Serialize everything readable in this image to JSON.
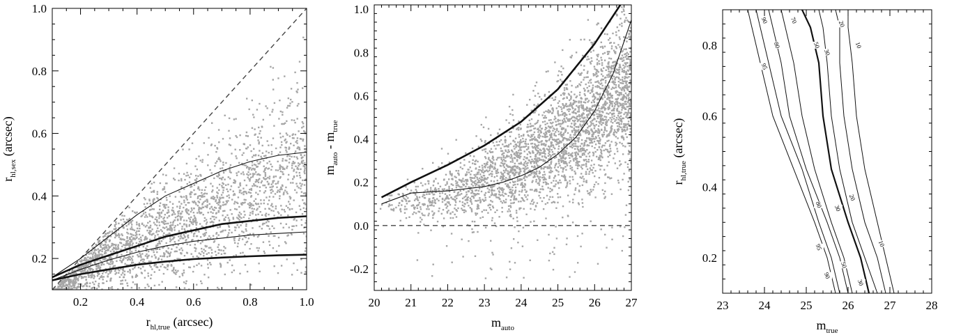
{
  "chart_data": [
    {
      "type": "scatter",
      "title": "",
      "xlabel": {
        "main": "r",
        "sub": "hl,true",
        "suffix": " (arcsec)"
      },
      "ylabel": {
        "main": "r",
        "sub": "hl,sex",
        "suffix": " (arcsec)"
      },
      "xlim": [
        0.1,
        1.0
      ],
      "ylim": [
        0.1,
        1.0
      ],
      "xticks": [
        0.2,
        0.4,
        0.6,
        0.8,
        1.0
      ],
      "xtick_labels": [
        "0.2",
        "0.4",
        "0.6",
        "0.8",
        "1.0"
      ],
      "yticks": [
        0.2,
        0.4,
        0.6,
        0.8,
        1.0
      ],
      "ytick_labels": [
        "0.2",
        "0.4",
        "0.6",
        "0.8",
        "1.0"
      ],
      "scatter_color": "#a6a6a6",
      "scatter_cloud": {
        "n": 2600,
        "x_range": [
          0.1,
          1.0
        ]
      },
      "series": [
        {
          "style": "dashed",
          "x": [
            0.1,
            1.0
          ],
          "y": [
            0.1,
            1.0
          ]
        },
        {
          "style": "thin",
          "x": [
            0.1,
            0.2,
            0.3,
            0.4,
            0.5,
            0.6,
            0.7,
            0.8,
            0.9,
            1.0
          ],
          "y": [
            0.14,
            0.2,
            0.27,
            0.34,
            0.4,
            0.44,
            0.48,
            0.51,
            0.53,
            0.54
          ]
        },
        {
          "style": "thick",
          "x": [
            0.1,
            0.2,
            0.3,
            0.4,
            0.5,
            0.6,
            0.7,
            0.8,
            0.9,
            1.0
          ],
          "y": [
            0.14,
            0.18,
            0.21,
            0.24,
            0.27,
            0.29,
            0.31,
            0.32,
            0.33,
            0.335
          ]
        },
        {
          "style": "thin",
          "x": [
            0.1,
            0.2,
            0.3,
            0.4,
            0.5,
            0.6,
            0.7,
            0.8,
            0.9,
            1.0
          ],
          "y": [
            0.13,
            0.165,
            0.195,
            0.22,
            0.24,
            0.255,
            0.265,
            0.275,
            0.28,
            0.285
          ]
        },
        {
          "style": "thick",
          "x": [
            0.1,
            0.2,
            0.3,
            0.4,
            0.5,
            0.6,
            0.7,
            0.8,
            0.9,
            1.0
          ],
          "y": [
            0.13,
            0.15,
            0.165,
            0.18,
            0.19,
            0.198,
            0.203,
            0.207,
            0.21,
            0.212
          ]
        }
      ]
    },
    {
      "type": "scatter",
      "title": "",
      "xlabel": {
        "main": "m",
        "sub": "auto",
        "suffix": ""
      },
      "ylabel": {
        "main": "m",
        "sub": "auto",
        "mid": " - m",
        "sub2": "true",
        "suffix": ""
      },
      "xlim": [
        20,
        27
      ],
      "ylim": [
        -0.3,
        1.02
      ],
      "xticks": [
        20,
        21,
        22,
        23,
        24,
        25,
        26,
        27
      ],
      "xtick_labels": [
        "20",
        "21",
        "22",
        "23",
        "24",
        "25",
        "26",
        "27"
      ],
      "yticks": [
        -0.2,
        0.0,
        0.2,
        0.4,
        0.6,
        0.8,
        1.0
      ],
      "ytick_labels": [
        "-0.2",
        "0.0",
        "0.2",
        "0.4",
        "0.6",
        "0.8",
        "1.0"
      ],
      "scatter_color": "#a6a6a6",
      "scatter_cloud": {
        "n": 3200,
        "x_range": [
          20.1,
          27
        ]
      },
      "series": [
        {
          "style": "dashed",
          "x": [
            20,
            27
          ],
          "y": [
            0.0,
            0.0
          ]
        },
        {
          "style": "thick",
          "x": [
            20.2,
            21,
            22,
            23,
            24,
            25,
            26,
            26.7
          ],
          "y": [
            0.13,
            0.2,
            0.28,
            0.37,
            0.48,
            0.63,
            0.84,
            1.02
          ]
        },
        {
          "style": "thin",
          "x": [
            20.2,
            21,
            22,
            23,
            23.5,
            24,
            24.5,
            25,
            25.5,
            26,
            26.5,
            27
          ],
          "y": [
            0.1,
            0.15,
            0.16,
            0.18,
            0.2,
            0.23,
            0.27,
            0.33,
            0.41,
            0.53,
            0.7,
            0.95
          ]
        }
      ]
    },
    {
      "type": "line",
      "title": "",
      "xlabel": {
        "main": "m",
        "sub": "true",
        "suffix": ""
      },
      "ylabel": {
        "main": "r",
        "sub": "hl,true",
        "suffix": " (arcsec)"
      },
      "xlim": [
        23,
        28
      ],
      "ylim": [
        0.1,
        0.9
      ],
      "xticks": [
        23,
        24,
        25,
        26,
        27,
        28
      ],
      "xtick_labels": [
        "23",
        "24",
        "25",
        "26",
        "27",
        "28"
      ],
      "yticks": [
        0.2,
        0.4,
        0.6,
        0.8
      ],
      "ytick_labels": [
        "0.2",
        "0.4",
        "0.6",
        "0.8"
      ],
      "contours": [
        {
          "label": "95",
          "bold": false,
          "x": [
            23.6,
            23.7,
            23.9,
            24.2,
            24.7,
            25.2,
            25.5,
            25.7
          ],
          "y": [
            0.9,
            0.85,
            0.75,
            0.6,
            0.45,
            0.3,
            0.2,
            0.1
          ],
          "labels_at": [
            {
              "x": 24.0,
              "y": 0.74
            },
            {
              "x": 25.3,
              "y": 0.23
            }
          ]
        },
        {
          "label": "90",
          "bold": false,
          "x": [
            23.8,
            23.9,
            24.1,
            24.4,
            24.9,
            25.3,
            25.6,
            25.8
          ],
          "y": [
            0.9,
            0.85,
            0.75,
            0.6,
            0.45,
            0.3,
            0.2,
            0.1
          ],
          "labels_at": [
            {
              "x": 24.0,
              "y": 0.87
            },
            {
              "x": 25.5,
              "y": 0.15
            }
          ]
        },
        {
          "label": "80",
          "bold": false,
          "x": [
            24.1,
            24.2,
            24.4,
            24.6,
            25.0,
            25.5,
            25.8,
            26.0
          ],
          "y": [
            0.9,
            0.85,
            0.75,
            0.6,
            0.45,
            0.3,
            0.2,
            0.1
          ],
          "labels_at": [
            {
              "x": 24.3,
              "y": 0.8
            },
            {
              "x": 25.3,
              "y": 0.35
            }
          ]
        },
        {
          "label": "70",
          "bold": false,
          "x": [
            24.4,
            24.5,
            24.7,
            24.9,
            25.2,
            25.6,
            25.9,
            26.1
          ],
          "y": [
            0.9,
            0.85,
            0.75,
            0.6,
            0.45,
            0.3,
            0.2,
            0.1
          ],
          "labels_at": [
            {
              "x": 24.7,
              "y": 0.87
            }
          ]
        },
        {
          "label": "50",
          "bold": true,
          "x": [
            24.9,
            25.1,
            25.3,
            25.4,
            25.6,
            26.0,
            26.3,
            26.5
          ],
          "y": [
            0.9,
            0.85,
            0.75,
            0.6,
            0.45,
            0.3,
            0.2,
            0.1
          ],
          "labels_at": [
            {
              "x": 25.25,
              "y": 0.8
            },
            {
              "x": 25.9,
              "y": 0.18
            }
          ]
        },
        {
          "label": "30",
          "bold": false,
          "x": [
            25.3,
            25.4,
            25.5,
            25.6,
            25.8,
            26.1,
            26.4,
            26.7
          ],
          "y": [
            0.9,
            0.85,
            0.75,
            0.6,
            0.45,
            0.3,
            0.2,
            0.1
          ],
          "labels_at": [
            {
              "x": 25.5,
              "y": 0.78
            },
            {
              "x": 25.75,
              "y": 0.34
            },
            {
              "x": 26.3,
              "y": 0.13
            }
          ]
        },
        {
          "label": "20",
          "bold": false,
          "x": [
            25.7,
            25.8,
            25.8,
            25.9,
            26.1,
            26.4,
            26.7,
            26.9
          ],
          "y": [
            0.9,
            0.85,
            0.75,
            0.6,
            0.45,
            0.3,
            0.2,
            0.1
          ],
          "labels_at": [
            {
              "x": 25.85,
              "y": 0.86
            },
            {
              "x": 26.1,
              "y": 0.37
            }
          ]
        },
        {
          "label": "10",
          "bold": false,
          "x": [
            26.0,
            26.0,
            26.1,
            26.2,
            26.4,
            26.7,
            26.9,
            27.1
          ],
          "y": [
            0.9,
            0.85,
            0.75,
            0.6,
            0.45,
            0.3,
            0.2,
            0.1
          ],
          "labels_at": [
            {
              "x": 26.25,
              "y": 0.8
            },
            {
              "x": 26.8,
              "y": 0.24
            }
          ]
        }
      ]
    }
  ]
}
